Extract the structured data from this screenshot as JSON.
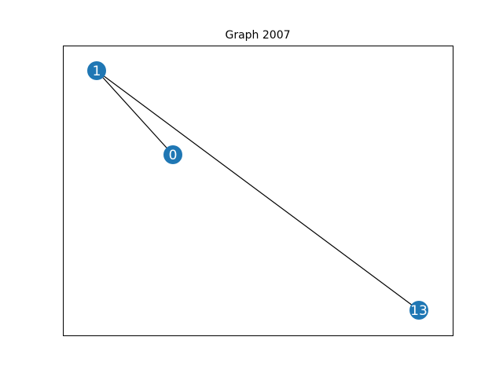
{
  "title": "Graph 2007",
  "colors": {
    "node": "#1f77b4",
    "edge": "#000000",
    "frame": "#000000",
    "label": "#ffffff"
  },
  "graph": {
    "nodes": [
      {
        "id": "1",
        "label": "1"
      },
      {
        "id": "0",
        "label": "0"
      },
      {
        "id": "13",
        "label": "13"
      }
    ],
    "edges": [
      {
        "source": "1",
        "target": "0"
      },
      {
        "source": "1",
        "target": "13"
      }
    ]
  }
}
